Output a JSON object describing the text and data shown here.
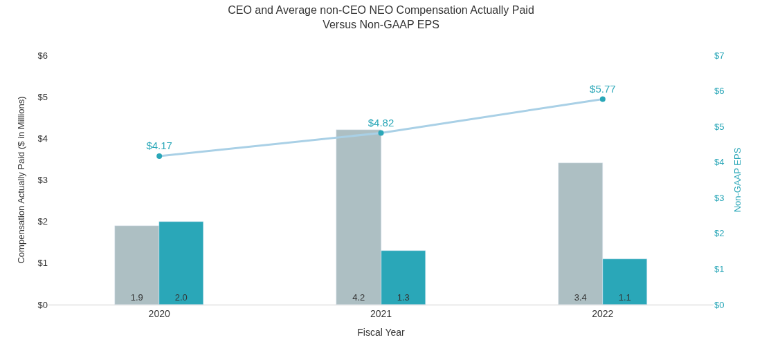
{
  "chart_data": {
    "type": "bar",
    "title": "CEO and Average non-CEO NEO Compensation Actually Paid\nVersus Non-GAAP EPS",
    "xlabel": "Fiscal Year",
    "ylabel": "Compensation Actually Paid ($ in Millions)",
    "y2label": "Non-GAAP EPS",
    "categories": [
      "2020",
      "2021",
      "2022"
    ],
    "series": [
      {
        "color": "#adbfc3",
        "values": [
          1.9,
          4.2,
          3.4
        ],
        "value_labels": [
          "1.9",
          "4.2",
          "3.4"
        ]
      },
      {
        "color": "#2aa7b8",
        "values": [
          2.0,
          1.3,
          1.1
        ],
        "value_labels": [
          "2.0",
          "1.3",
          "1.1"
        ]
      },
      {
        "type": "line",
        "axis": "y2",
        "color": "#a9d0e6",
        "values": [
          4.17,
          4.82,
          5.77
        ],
        "value_labels": [
          "$4.17",
          "$4.82",
          "$5.77"
        ],
        "marker": "circle"
      }
    ],
    "ylim": [
      0,
      6
    ],
    "yticks": [
      {
        "value": 0,
        "label": "$0"
      },
      {
        "value": 1,
        "label": "$1"
      },
      {
        "value": 2,
        "label": "$2"
      },
      {
        "value": 3,
        "label": "$3"
      },
      {
        "value": 4,
        "label": "$4"
      },
      {
        "value": 5,
        "label": "$5"
      },
      {
        "value": 6,
        "label": "$6"
      }
    ],
    "y2lim": [
      0,
      7
    ],
    "y2ticks": [
      {
        "value": 0,
        "label": "$0"
      },
      {
        "value": 1,
        "label": "$1"
      },
      {
        "value": 2,
        "label": "$2"
      },
      {
        "value": 3,
        "label": "$3"
      },
      {
        "value": 4,
        "label": "$4"
      },
      {
        "value": 5,
        "label": "$5"
      },
      {
        "value": 6,
        "label": "$6"
      },
      {
        "value": 7,
        "label": "$7"
      }
    ]
  }
}
